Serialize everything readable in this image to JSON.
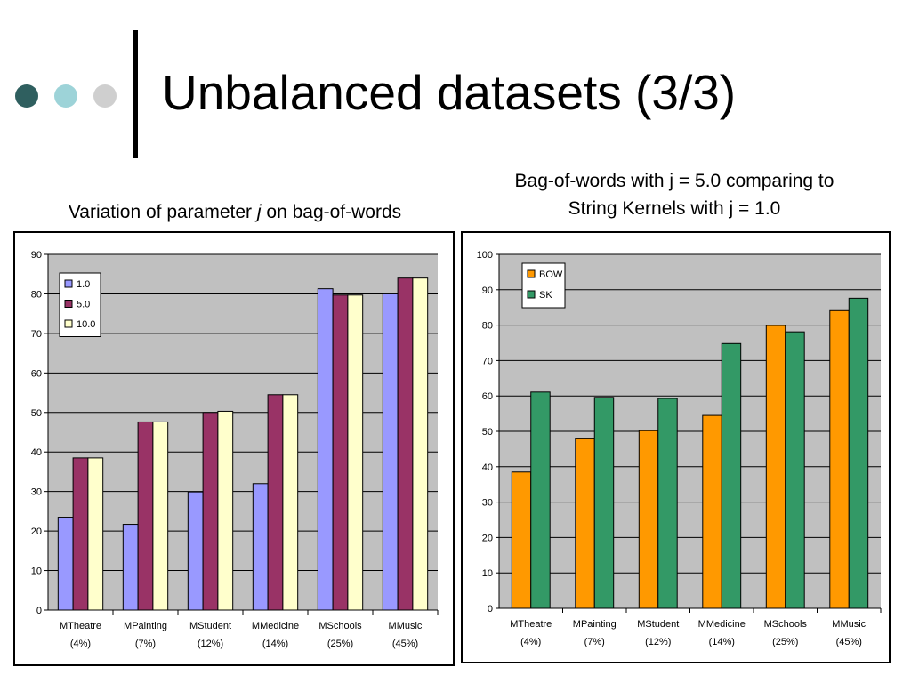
{
  "slide": {
    "title": "Unbalanced datasets (3/3)",
    "subtitle_left_a": "Variation of parameter ",
    "subtitle_left_b": "j",
    "subtitle_left_c": " on bag-of-words",
    "subtitle_right_line1": "Bag-of-words with j = 5.0 comparing to",
    "subtitle_right_line2": "String Kernels with j = 1.0"
  },
  "chart_data": [
    {
      "type": "bar",
      "categories": [
        [
          "MTheatre",
          "(4%)"
        ],
        [
          "MPainting",
          "(7%)"
        ],
        [
          "MStudent",
          "(12%)"
        ],
        [
          "MMedicine",
          "(14%)"
        ],
        [
          "MSchools",
          "(25%)"
        ],
        [
          "MMusic",
          "(45%)"
        ]
      ],
      "series": [
        {
          "name": "1.0",
          "color": "#9999ff",
          "values": [
            23.5,
            21.7,
            29.9,
            32.0,
            81.3,
            80.0
          ]
        },
        {
          "name": "5.0",
          "color": "#993366",
          "values": [
            38.5,
            47.6,
            50.0,
            54.5,
            79.7,
            84.0
          ]
        },
        {
          "name": "10.0",
          "color": "#ffffcc",
          "values": [
            38.5,
            47.6,
            50.3,
            54.5,
            79.7,
            84.0
          ]
        }
      ],
      "ylim": [
        0,
        90
      ],
      "yticks": [
        0,
        10,
        20,
        30,
        40,
        50,
        60,
        70,
        80,
        90
      ],
      "grid": true,
      "plot_bg": "#c0c0c0",
      "legend_position": "top-left"
    },
    {
      "type": "bar",
      "categories": [
        [
          "MTheatre",
          "(4%)"
        ],
        [
          "MPainting",
          "(7%)"
        ],
        [
          "MStudent",
          "(12%)"
        ],
        [
          "MMedicine",
          "(14%)"
        ],
        [
          "MSchools",
          "(25%)"
        ],
        [
          "MMusic",
          "(45%)"
        ]
      ],
      "series": [
        {
          "name": "BOW",
          "color": "#ff9900",
          "values": [
            38.5,
            47.9,
            50.2,
            54.5,
            79.9,
            84.1
          ]
        },
        {
          "name": "SK",
          "color": "#339966",
          "values": [
            61.1,
            59.6,
            59.3,
            74.8,
            78.1,
            87.6
          ]
        }
      ],
      "ylim": [
        0,
        100
      ],
      "yticks": [
        0,
        10,
        20,
        30,
        40,
        50,
        60,
        70,
        80,
        90,
        100
      ],
      "grid": true,
      "plot_bg": "#c0c0c0",
      "legend_position": "top-left"
    }
  ]
}
